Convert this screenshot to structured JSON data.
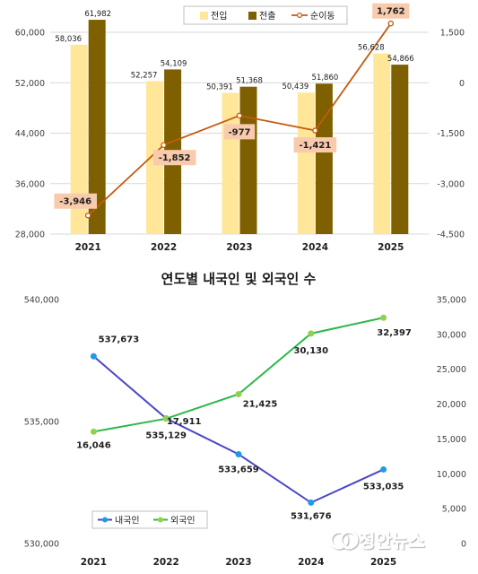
{
  "chart_data": [
    {
      "type": "bar",
      "title": "",
      "categories": [
        "2021",
        "2022",
        "2023",
        "2024",
        "2025"
      ],
      "series": [
        {
          "name": "전입",
          "type": "bar",
          "axis": "left",
          "values": [
            58036,
            52257,
            50391,
            50439,
            56628
          ]
        },
        {
          "name": "전출",
          "type": "bar",
          "axis": "left",
          "values": [
            61982,
            54109,
            51368,
            51860,
            54866
          ]
        },
        {
          "name": "순이동",
          "type": "line",
          "axis": "right",
          "values": [
            -3946,
            -1852,
            -977,
            -1421,
            1762
          ]
        }
      ],
      "value_labels": {
        "전입": [
          "58,036",
          "52,257",
          "50,391",
          "50,439",
          "56,628"
        ],
        "전출": [
          "61,982",
          "54,109",
          "51,368",
          "51,860",
          "54,866"
        ],
        "순이동": [
          "-3,946",
          "-1,852",
          "-977",
          "-1,421",
          "1,762"
        ]
      },
      "ylim_left": [
        28000,
        60000
      ],
      "yticks_left": [
        "60,000",
        "52,000",
        "44,000",
        "36,000",
        "28,000"
      ],
      "ylim_right": [
        -4500,
        1500
      ],
      "yticks_right": [
        "1,500",
        "0",
        "-1,500",
        "-3,000",
        "-4,500"
      ],
      "legend": "top",
      "colors": {
        "전입": "#FFE699",
        "전출": "#7F6000",
        "순이동": "#C55A11",
        "label_box": "#F8CBAD"
      },
      "grid": "horizontal"
    },
    {
      "type": "line",
      "title": "연도별 내국인 및 외국인 수",
      "categories": [
        "2021",
        "2022",
        "2023",
        "2024",
        "2025"
      ],
      "series": [
        {
          "name": "내국인",
          "axis": "left",
          "values": [
            537673,
            535129,
            533659,
            531676,
            533035
          ]
        },
        {
          "name": "외국인",
          "axis": "right",
          "values": [
            16046,
            17911,
            21425,
            30130,
            32397
          ]
        }
      ],
      "value_labels": {
        "내국인": [
          "537,673",
          "535,129",
          "533,659",
          "531,676",
          "533,035"
        ],
        "외국인": [
          "16,046",
          "17,911",
          "21,425",
          "30,130",
          "32,397"
        ]
      },
      "ylim_left": [
        530000,
        540000
      ],
      "yticks_left": [
        "540,000",
        "535,000",
        "530,000"
      ],
      "ylim_right": [
        0,
        35000
      ],
      "yticks_right": [
        "35,000",
        "30,000",
        "25,000",
        "20,000",
        "15,000",
        "10,000",
        "5,000",
        "0"
      ],
      "legend": "bottom-left",
      "colors": {
        "내국인": "#4A47C6",
        "외국인": "#2DB84A",
        "내국인_marker": "#1E9BE8",
        "외국인_marker": "#92D050"
      },
      "grid": "none"
    }
  ],
  "watermark": "정안뉴스",
  "watermark_icon": "jeongan-news-logo-icon"
}
